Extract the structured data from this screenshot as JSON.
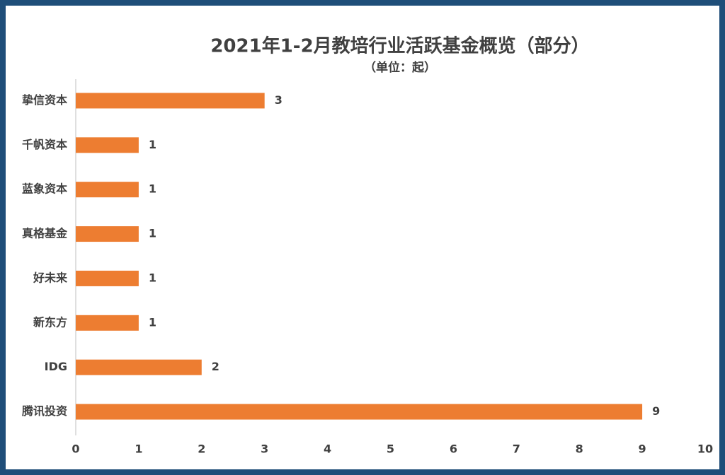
{
  "chart_data": {
    "type": "barh",
    "title": "2021年1-2月教培行业活跃基金概览（部分）",
    "subtitle": "（单位：起）",
    "categories": [
      "挚信资本",
      "千帆资本",
      "蓝象资本",
      "真格基金",
      "好未来",
      "新东方",
      "IDG",
      "腾讯投资"
    ],
    "values": [
      3,
      1,
      1,
      1,
      1,
      1,
      2,
      9
    ],
    "color": "#ed7d31",
    "xlim": [
      0,
      10
    ],
    "xticks": [
      0,
      1,
      2,
      3,
      4,
      5,
      6,
      7,
      8,
      9,
      10
    ]
  }
}
